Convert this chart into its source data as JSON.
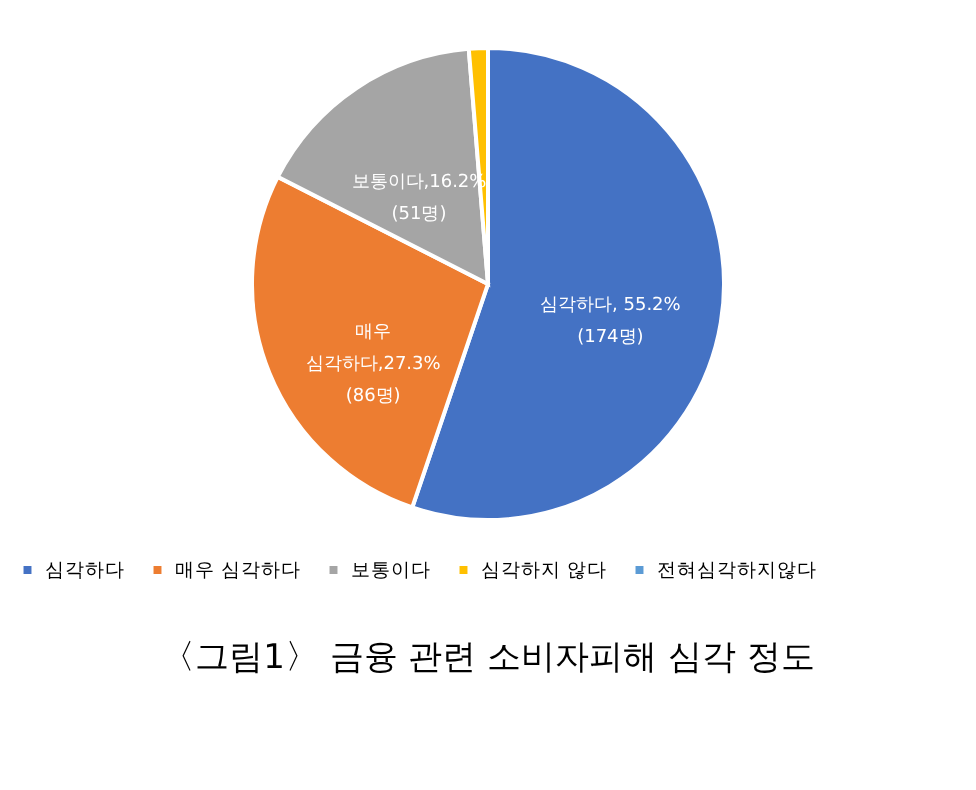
{
  "chart_data": {
    "type": "pie",
    "title": "〈그림1〉 금융 관련 소비자피해 심각 정도",
    "categories": [
      "심각하다",
      "매우 심각하다",
      "보통이다",
      "심각하지 않다",
      "전혀심각하지않다"
    ],
    "values": [
      55.2,
      27.3,
      16.2,
      1.3,
      0
    ],
    "colors": [
      "#4472c4",
      "#ed7d31",
      "#a5a5a5",
      "#ffc000",
      "#5b9bd5"
    ],
    "value_labels": [
      "심각하다, 55.2%\n(174명)",
      "매우\n심각하다,27.3%\n(86명)",
      "보통이다,16.2%\n(51명)",
      null,
      null
    ],
    "legend": "bottom"
  }
}
